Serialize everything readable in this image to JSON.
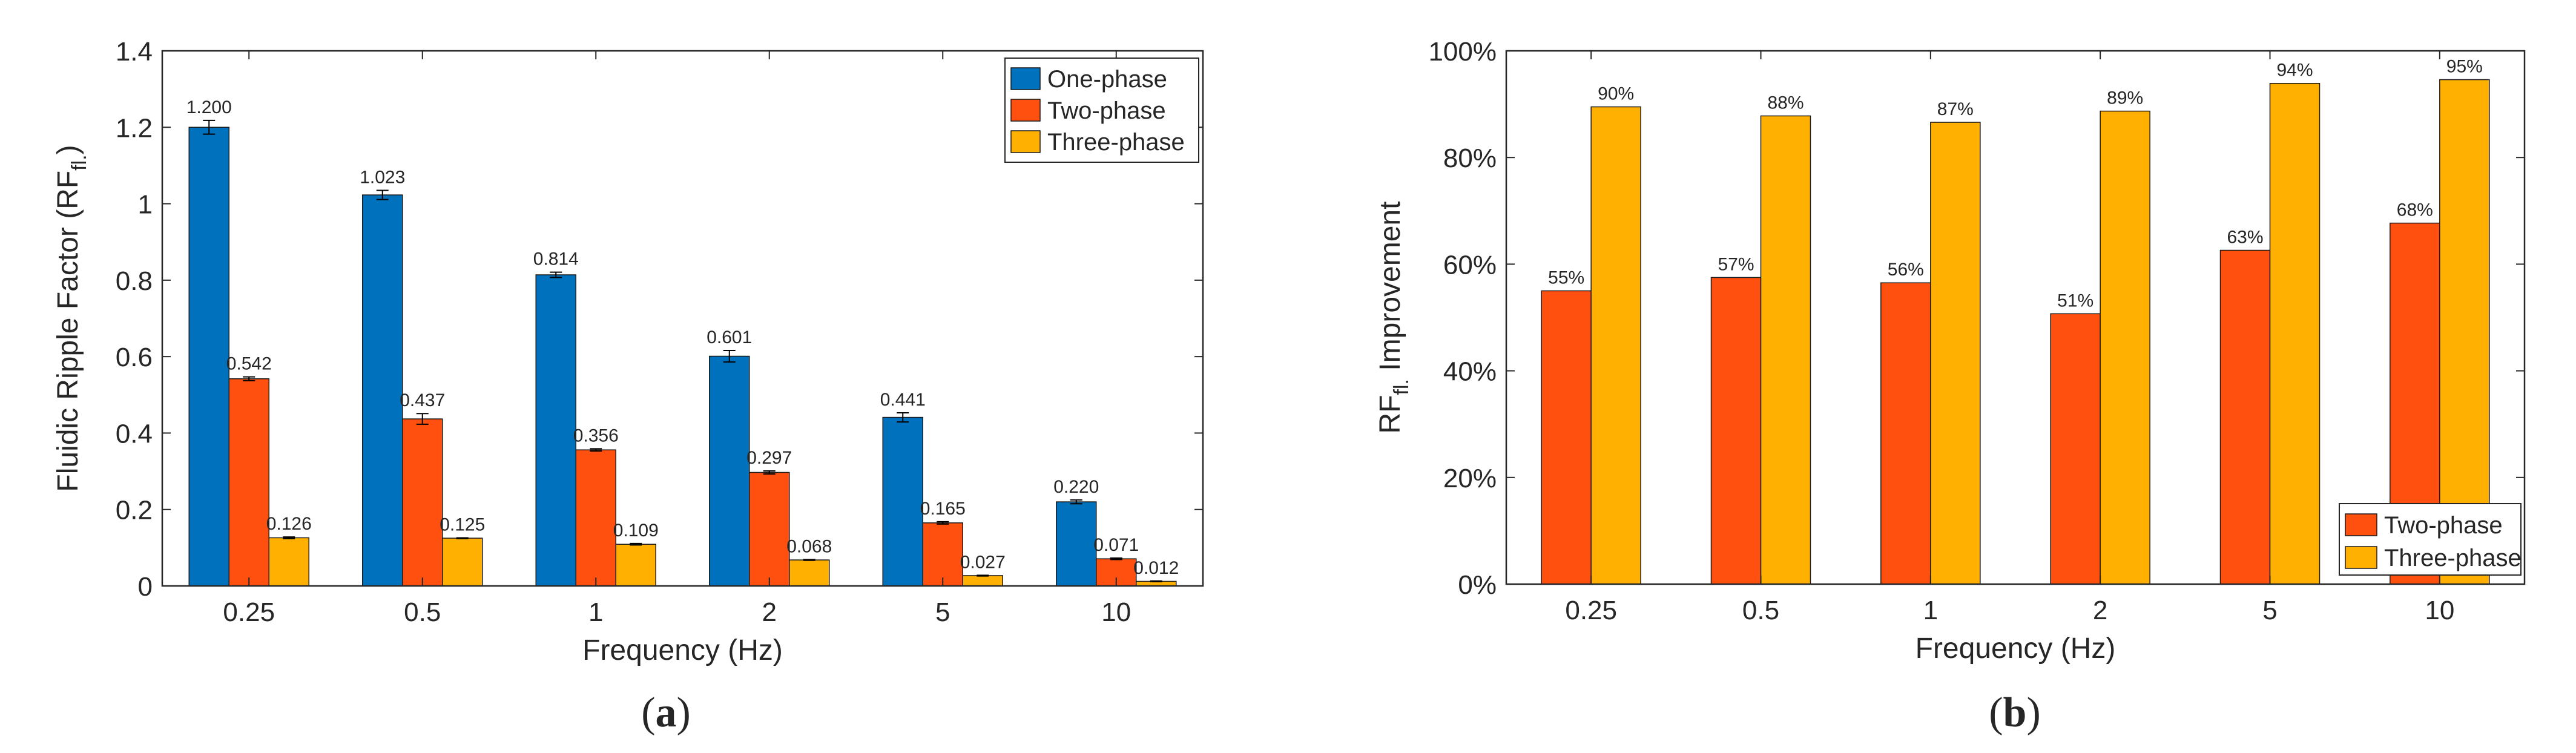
{
  "chart_data": [
    {
      "type": "bar",
      "panel_label": "(a)",
      "panel_letter": "a",
      "title": "",
      "xlabel": "Frequency (Hz)",
      "ylabel_main": "Fluidic Ripple Factor (RF",
      "ylabel_sub": "fl.",
      "ylabel_end": ")",
      "ylim": [
        0,
        1.4
      ],
      "yticks": [
        "0",
        "0.2",
        "0.4",
        "0.6",
        "0.8",
        "1",
        "1.2",
        "1.4"
      ],
      "categories": [
        "0.25",
        "0.5",
        "1",
        "2",
        "5",
        "10"
      ],
      "legend_position": "top-right",
      "error_bars": true,
      "series": [
        {
          "name": "One-phase",
          "color": "#0072BD",
          "values": [
            1.2,
            1.023,
            0.814,
            0.601,
            0.441,
            0.22
          ],
          "labels": [
            "1.200",
            "1.023",
            "0.814",
            "0.601",
            "0.441",
            "0.220"
          ],
          "errors": [
            0.018,
            0.012,
            0.007,
            0.015,
            0.012,
            0.005
          ]
        },
        {
          "name": "Two-phase",
          "color": "#FF5010",
          "values": [
            0.542,
            0.437,
            0.356,
            0.297,
            0.165,
            0.071
          ],
          "labels": [
            "0.542",
            "0.437",
            "0.356",
            "0.297",
            "0.165",
            "0.071"
          ],
          "errors": [
            0.005,
            0.014,
            0.003,
            0.004,
            0.003,
            0.002
          ]
        },
        {
          "name": "Three-phase",
          "color": "#FFB000",
          "values": [
            0.126,
            0.125,
            0.109,
            0.068,
            0.027,
            0.012
          ],
          "labels": [
            "0.126",
            "0.125",
            "0.109",
            "0.068",
            "0.027",
            "0.012"
          ],
          "errors": [
            0.002,
            0.001,
            0.002,
            0.001,
            0.001,
            0.001
          ]
        }
      ]
    },
    {
      "type": "bar",
      "panel_label": "(b)",
      "panel_letter": "b",
      "title": "",
      "xlabel": "Frequency (Hz)",
      "ylabel_main": "RF",
      "ylabel_sub": "fl.",
      "ylabel_end": " Improvement",
      "ylim": [
        0,
        100
      ],
      "yticks": [
        "0%",
        "20%",
        "40%",
        "60%",
        "80%",
        "100%"
      ],
      "categories": [
        "0.25",
        "0.5",
        "1",
        "2",
        "5",
        "10"
      ],
      "legend_position": "bottom-right",
      "error_bars": false,
      "series": [
        {
          "name": "Two-phase",
          "color": "#FF5010",
          "values": [
            55,
            57.5,
            56.5,
            50.7,
            62.6,
            67.7
          ],
          "labels": [
            "55%",
            "57%",
            "56%",
            "51%",
            "63%",
            "68%"
          ]
        },
        {
          "name": "Three-phase",
          "color": "#FFB000",
          "values": [
            89.5,
            87.8,
            86.6,
            88.7,
            93.9,
            94.6
          ],
          "labels": [
            "90%",
            "88%",
            "87%",
            "89%",
            "94%",
            "95%"
          ]
        }
      ]
    }
  ]
}
